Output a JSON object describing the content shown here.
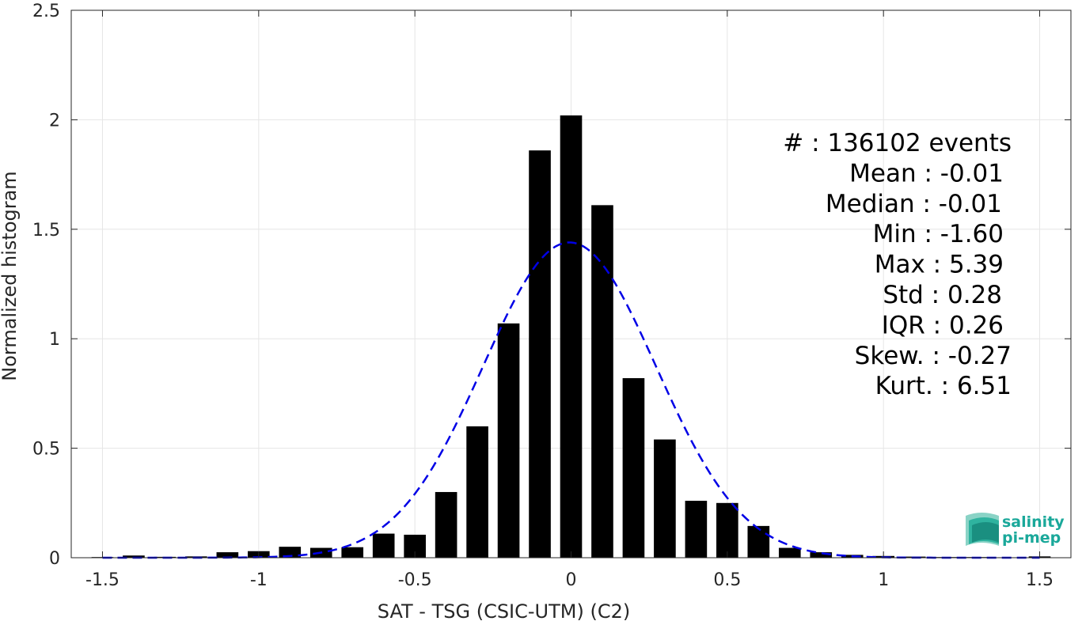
{
  "chart_data": {
    "type": "bar",
    "xlabel": "SAT - TSG (CSIC-UTM) (C2)",
    "ylabel": "Normalized histogram",
    "xlim": [
      -1.6,
      1.6
    ],
    "ylim": [
      0,
      2.5
    ],
    "xticks": [
      -1.5,
      -1,
      -0.5,
      0,
      0.5,
      1,
      1.5
    ],
    "xtick_labels": [
      "-1.5",
      "-1",
      "-0.5",
      "0",
      "0.5",
      "1",
      "1.5"
    ],
    "yticks": [
      0,
      0.5,
      1,
      1.5,
      2,
      2.5
    ],
    "ytick_labels": [
      "0",
      "0.5",
      "1",
      "1.5",
      "2",
      "2.5"
    ],
    "grid": true,
    "bar_color": "#000000",
    "bins": [
      {
        "x": -1.5,
        "value": 0.003
      },
      {
        "x": -1.4,
        "value": 0.01
      },
      {
        "x": -1.3,
        "value": 0.004
      },
      {
        "x": -1.2,
        "value": 0.006
      },
      {
        "x": -1.1,
        "value": 0.025
      },
      {
        "x": -1.0,
        "value": 0.03
      },
      {
        "x": -0.9,
        "value": 0.05
      },
      {
        "x": -0.8,
        "value": 0.045
      },
      {
        "x": -0.7,
        "value": 0.048
      },
      {
        "x": -0.6,
        "value": 0.11
      },
      {
        "x": -0.5,
        "value": 0.105
      },
      {
        "x": -0.4,
        "value": 0.3
      },
      {
        "x": -0.3,
        "value": 0.6
      },
      {
        "x": -0.2,
        "value": 1.07
      },
      {
        "x": -0.1,
        "value": 1.86
      },
      {
        "x": 0.0,
        "value": 2.02
      },
      {
        "x": 0.1,
        "value": 1.61
      },
      {
        "x": 0.2,
        "value": 0.82
      },
      {
        "x": 0.3,
        "value": 0.54
      },
      {
        "x": 0.4,
        "value": 0.26
      },
      {
        "x": 0.5,
        "value": 0.25
      },
      {
        "x": 0.6,
        "value": 0.145
      },
      {
        "x": 0.7,
        "value": 0.045
      },
      {
        "x": 0.8,
        "value": 0.025
      },
      {
        "x": 0.9,
        "value": 0.013
      },
      {
        "x": 1.0,
        "value": 0.008
      },
      {
        "x": 1.1,
        "value": 0.005
      },
      {
        "x": 1.2,
        "value": 0.003
      },
      {
        "x": 1.3,
        "value": 0.003
      },
      {
        "x": 1.4,
        "value": 0.002
      },
      {
        "x": 1.5,
        "value": 0.006
      }
    ],
    "fit_curve": {
      "type": "gaussian",
      "color": "#0000e6",
      "style": "dashed",
      "mean": -0.005,
      "std": 0.277,
      "peak": 1.44,
      "x_range": [
        -1.5,
        1.5
      ]
    },
    "annotation_lines": [
      "#  : 136102 events",
      "Mean : -0.01",
      "Median : -0.01",
      "Min : -1.60",
      "Max : 5.39",
      "Std : 0.28",
      "IQR : 0.26",
      "Skew. : -0.27",
      "Kurt. : 6.51"
    ]
  },
  "logo": {
    "line1": "salinity",
    "line2": "pi-mep"
  }
}
